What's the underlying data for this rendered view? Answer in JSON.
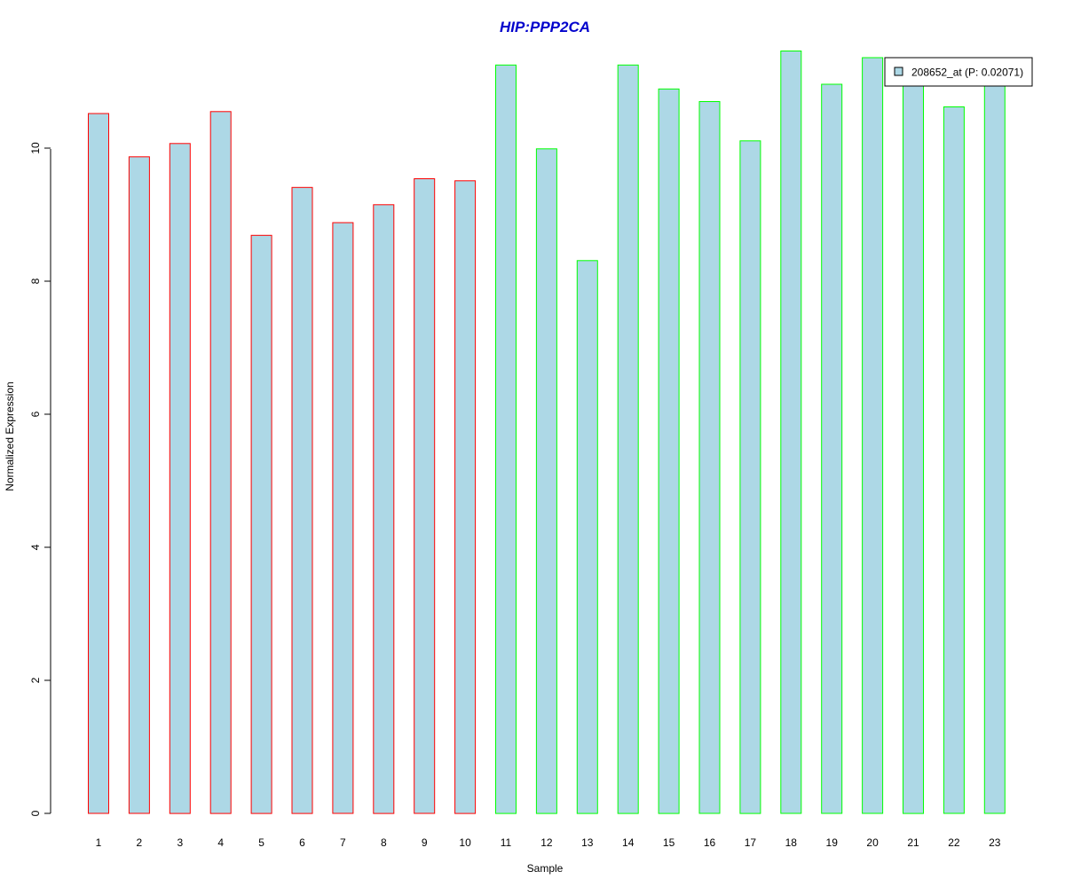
{
  "chart_data": {
    "type": "bar",
    "title": "HIP:PPP2CA",
    "xlabel": "Sample",
    "ylabel": "Normalized Expression",
    "categories": [
      "1",
      "2",
      "3",
      "4",
      "5",
      "6",
      "7",
      "8",
      "9",
      "10",
      "11",
      "12",
      "13",
      "14",
      "15",
      "16",
      "17",
      "18",
      "19",
      "20",
      "21",
      "22",
      "23"
    ],
    "values": [
      10.52,
      9.87,
      10.07,
      10.55,
      8.69,
      9.41,
      8.88,
      9.15,
      9.54,
      9.51,
      11.25,
      9.99,
      8.31,
      11.25,
      10.89,
      10.7,
      10.11,
      11.46,
      10.96,
      11.36,
      11.03,
      10.62,
      11.0
    ],
    "groups": [
      "a",
      "a",
      "a",
      "a",
      "a",
      "a",
      "a",
      "a",
      "a",
      "a",
      "b",
      "b",
      "b",
      "b",
      "b",
      "b",
      "b",
      "b",
      "b",
      "b",
      "b",
      "b",
      "b"
    ],
    "yticks": [
      "0",
      "2",
      "4",
      "6",
      "8",
      "10"
    ],
    "ylim": [
      0,
      11.6
    ],
    "grid": false,
    "legend": {
      "position": "top-right",
      "entries": [
        "208652_at (P: 0.02071)"
      ]
    },
    "colors": {
      "bar_fill": "#add8e6",
      "group_a_border": "#ff0000",
      "group_b_border": "#00ff00",
      "title": "#0000cc"
    }
  }
}
